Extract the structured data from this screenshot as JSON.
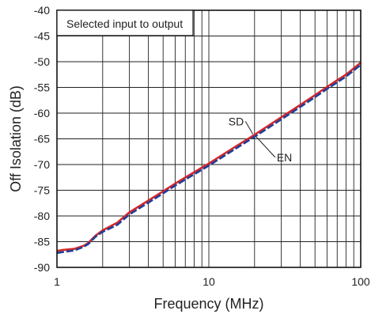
{
  "chart_data": {
    "type": "line",
    "title": "",
    "xlabel": "Frequency (MHz)",
    "ylabel": "Off Isolation (dB)",
    "x_scale": "log",
    "xlim": [
      1,
      100
    ],
    "ylim": [
      -90,
      -40
    ],
    "grid": true,
    "x_ticks": [
      1,
      10,
      100
    ],
    "x_tick_labels": [
      "1",
      "10",
      "100"
    ],
    "x_minor_ticks": [
      2,
      3,
      4,
      5,
      6,
      7,
      8,
      9,
      20,
      30,
      40,
      50,
      60,
      70,
      80,
      90
    ],
    "y_ticks": [
      -40,
      -45,
      -50,
      -55,
      -60,
      -65,
      -70,
      -75,
      -80,
      -85,
      -90
    ],
    "y_tick_labels": [
      "-40",
      "-45",
      "-50",
      "-55",
      "-60",
      "-65",
      "-70",
      "-75",
      "-80",
      "-85",
      "-90"
    ],
    "annotation_box": "Selected input to output",
    "series": [
      {
        "name": "SD",
        "color": "#d62728",
        "line_style": "solid",
        "x": [
          1,
          1.1,
          1.3,
          1.5,
          1.6,
          1.8,
          2,
          2.5,
          3,
          4,
          5,
          6,
          7,
          8,
          10,
          15,
          20,
          30,
          40,
          50,
          60,
          70,
          80,
          100
        ],
        "y": [
          -86.8,
          -86.6,
          -86.4,
          -85.8,
          -85.3,
          -83.8,
          -82.8,
          -81.3,
          -79.3,
          -77.0,
          -75.2,
          -73.7,
          -72.5,
          -71.5,
          -69.8,
          -66.5,
          -64.2,
          -60.8,
          -58.4,
          -56.5,
          -54.9,
          -53.6,
          -52.5,
          -50.2
        ]
      },
      {
        "name": "EN",
        "color": "#1f3f9a",
        "line_style": "dashed",
        "x": [
          1,
          1.1,
          1.3,
          1.5,
          1.6,
          1.8,
          2,
          2.5,
          3,
          4,
          5,
          6,
          7,
          8,
          10,
          15,
          20,
          30,
          40,
          50,
          60,
          70,
          80,
          100
        ],
        "y": [
          -87.2,
          -87.0,
          -86.7,
          -86.0,
          -85.5,
          -84.0,
          -83.1,
          -81.7,
          -79.7,
          -77.4,
          -75.6,
          -74.1,
          -72.9,
          -71.9,
          -70.2,
          -66.9,
          -64.6,
          -61.2,
          -58.8,
          -56.9,
          -55.3,
          -54.0,
          -52.9,
          -50.6
        ]
      }
    ],
    "series_labels": [
      {
        "series": "SD",
        "text": "SD",
        "x": 17,
        "y": -61.6,
        "leader_to": {
          "x": 19.5,
          "y": -64.1
        }
      },
      {
        "series": "EN",
        "text": "EN",
        "x": 28,
        "y": -68.6,
        "leader_to": {
          "x": 20.5,
          "y": -64.6
        }
      }
    ]
  }
}
